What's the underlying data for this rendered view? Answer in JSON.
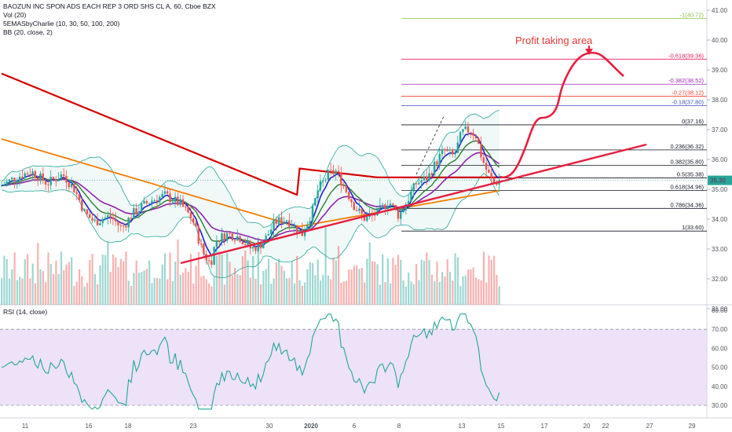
{
  "legend": {
    "title": "BAOZUN INC SPON ADS EACH REP 3 ORD SHS CL A, 60, Cboe BZX",
    "vol": "Vol (20)",
    "sema": "5EMASbyCharlie (10, 30, 50, 100, 200)",
    "bb": "BB (20, close, 2)",
    "rsi": "RSI (14, close)"
  },
  "colors": {
    "up": "#26a69a",
    "down": "#ef5350",
    "ema10": "#1e22c8",
    "ema30": "#2e7d32",
    "ema50": "#8e24aa",
    "ema100": "#f57c00",
    "ema200": "#d50000",
    "bb": "#26a69a",
    "trend": "#e91e3f",
    "rsi_line": "#26a69a",
    "rsi_band": "#e6d6f5",
    "price_badge": "#26a69a"
  },
  "last_price_label": "35.30",
  "chart_data": [
    {
      "type": "candlestick",
      "title": "BAOZUN INC SPON ADS EACH REP 3 ORD SHS CL A, 60, Cboe BZX",
      "y_ticks": [
        "41.00",
        "40.00",
        "39.00",
        "38.00",
        "37.00",
        "36.00",
        "35.00",
        "34.00",
        "33.00",
        "32.00",
        "31.00"
      ],
      "ylim": [
        30.6,
        41.3
      ],
      "x_ticks": [
        "11",
        "16",
        "18",
        "23",
        "30",
        "2020",
        "6",
        "8",
        "13",
        "15",
        "17",
        "20",
        "22",
        "27",
        "29"
      ],
      "fib_levels": [
        {
          "label": "-1(40.72)",
          "value": 40.72,
          "color": "#8bc34a"
        },
        {
          "label": "-0.618(39.36)",
          "value": 39.36,
          "color": "#e91e63"
        },
        {
          "label": "-0.382(38.52)",
          "value": 38.52,
          "color": "#9c27b0"
        },
        {
          "label": "-0.27(38.12)",
          "value": 38.12,
          "color": "#f44336"
        },
        {
          "label": "-0.18(37.80)",
          "value": 37.8,
          "color": "#3f51b5"
        },
        {
          "label": "0(37.16)",
          "value": 37.16,
          "color": "#131722"
        },
        {
          "label": "0.236(36.32)",
          "value": 36.32,
          "color": "#131722"
        },
        {
          "label": "0.382(35.80)",
          "value": 35.8,
          "color": "#131722"
        },
        {
          "label": "0.5(35.38)",
          "value": 35.38,
          "color": "#131722"
        },
        {
          "label": "0.618(34.96)",
          "value": 34.96,
          "color": "#131722"
        },
        {
          "label": "0.786(34.36)",
          "value": 34.36,
          "color": "#131722"
        },
        {
          "label": "1(33.60)",
          "value": 33.6,
          "color": "#131722"
        }
      ],
      "annotation": "Profit taking area",
      "last_price": 35.3
    },
    {
      "type": "line",
      "title": "RSI (14, close)",
      "y_ticks": [
        "80.00",
        "70.00",
        "60.00",
        "50.00",
        "40.00",
        "30.00"
      ],
      "ylim": [
        25,
        82
      ],
      "band": [
        30,
        70
      ]
    }
  ]
}
